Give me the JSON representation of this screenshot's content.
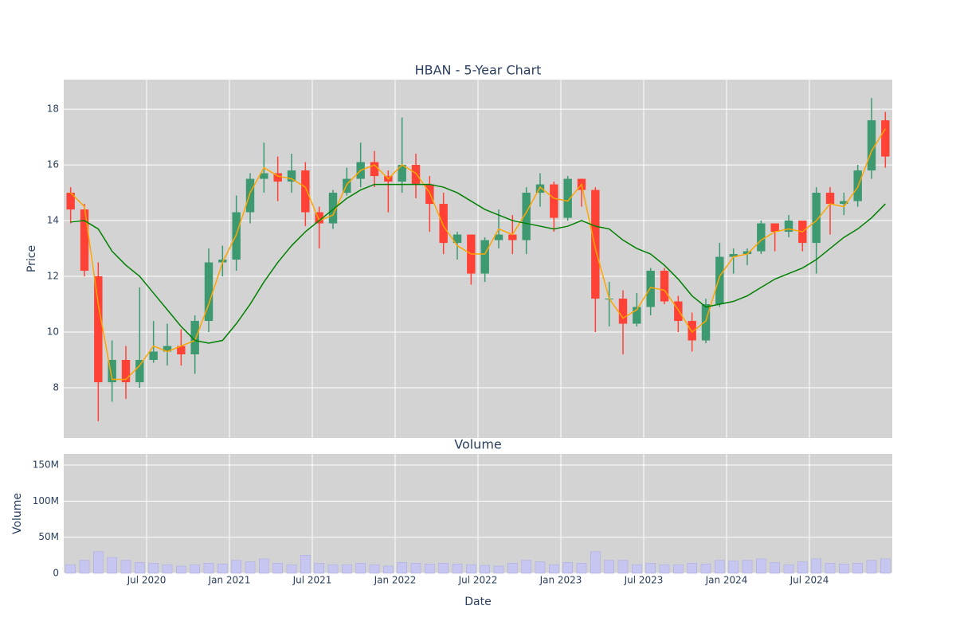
{
  "chart_data": [
    {
      "type": "candlestick",
      "title": "HBAN - 5-Year Chart",
      "ylabel": "Price",
      "x": [
        "2020-01",
        "2020-02",
        "2020-03",
        "2020-04",
        "2020-05",
        "2020-06",
        "2020-07",
        "2020-08",
        "2020-09",
        "2020-10",
        "2020-11",
        "2020-12",
        "2021-01",
        "2021-02",
        "2021-03",
        "2021-04",
        "2021-05",
        "2021-06",
        "2021-07",
        "2021-08",
        "2021-09",
        "2021-10",
        "2021-11",
        "2021-12",
        "2022-01",
        "2022-02",
        "2022-03",
        "2022-04",
        "2022-05",
        "2022-06",
        "2022-07",
        "2022-08",
        "2022-09",
        "2022-10",
        "2022-11",
        "2022-12",
        "2023-01",
        "2023-02",
        "2023-03",
        "2023-04",
        "2023-05",
        "2023-06",
        "2023-07",
        "2023-08",
        "2023-09",
        "2023-10",
        "2023-11",
        "2023-12",
        "2024-01",
        "2024-02",
        "2024-03",
        "2024-04",
        "2024-05",
        "2024-06",
        "2024-07",
        "2024-08",
        "2024-09",
        "2024-10",
        "2024-11",
        "2024-12"
      ],
      "open": [
        15.0,
        14.4,
        12.0,
        8.2,
        9.0,
        8.2,
        9.0,
        9.3,
        9.5,
        9.2,
        10.4,
        12.5,
        12.6,
        14.3,
        15.5,
        15.7,
        15.4,
        15.8,
        14.3,
        13.9,
        15.0,
        15.5,
        16.1,
        15.6,
        15.4,
        16.0,
        15.3,
        14.6,
        13.2,
        13.5,
        12.1,
        13.3,
        13.5,
        13.3,
        15.0,
        15.3,
        14.1,
        15.5,
        15.1,
        11.2,
        11.2,
        10.3,
        10.9,
        12.2,
        11.1,
        10.4,
        9.7,
        11.0,
        12.7,
        12.8,
        12.9,
        13.9,
        13.6,
        14.0,
        13.2,
        15.0,
        14.6,
        14.7,
        15.8,
        17.6
      ],
      "high": [
        15.2,
        14.6,
        12.5,
        9.7,
        9.5,
        11.6,
        10.4,
        10.3,
        10.1,
        10.6,
        13.0,
        13.1,
        14.9,
        15.7,
        16.8,
        16.3,
        16.4,
        16.1,
        14.5,
        15.1,
        15.9,
        16.8,
        16.5,
        15.8,
        17.7,
        16.4,
        15.6,
        15.0,
        13.6,
        13.5,
        13.4,
        14.4,
        14.2,
        15.2,
        15.7,
        15.4,
        15.6,
        15.5,
        15.2,
        11.8,
        11.5,
        11.4,
        12.3,
        12.3,
        11.3,
        10.7,
        11.2,
        13.2,
        13.0,
        13.0,
        14.0,
        13.9,
        14.2,
        14.0,
        15.2,
        15.2,
        15.0,
        16.0,
        18.4,
        17.9
      ],
      "low": [
        13.9,
        12.0,
        6.8,
        7.5,
        7.6,
        8.0,
        8.9,
        8.8,
        8.8,
        8.5,
        10.0,
        12.0,
        12.2,
        13.9,
        15.0,
        14.7,
        15.0,
        13.8,
        13.0,
        13.7,
        14.9,
        15.2,
        15.2,
        14.3,
        15.0,
        14.8,
        13.6,
        12.8,
        12.6,
        11.7,
        11.8,
        13.0,
        12.8,
        12.8,
        14.5,
        13.6,
        14.0,
        14.5,
        10.0,
        10.2,
        9.2,
        10.2,
        10.6,
        11.0,
        10.0,
        9.3,
        9.6,
        10.9,
        12.1,
        12.4,
        12.8,
        12.9,
        13.4,
        12.9,
        12.1,
        13.5,
        14.2,
        14.5,
        15.5,
        15.9
      ],
      "close": [
        14.4,
        12.2,
        8.2,
        9.0,
        8.2,
        9.0,
        9.3,
        9.5,
        9.2,
        10.4,
        12.5,
        12.6,
        14.3,
        15.5,
        15.7,
        15.4,
        15.8,
        14.3,
        13.9,
        15.0,
        15.5,
        16.1,
        15.6,
        15.4,
        16.0,
        15.3,
        14.6,
        13.2,
        13.5,
        12.1,
        13.3,
        13.5,
        13.3,
        15.0,
        15.3,
        14.1,
        15.5,
        15.1,
        11.2,
        11.2,
        10.3,
        10.9,
        12.2,
        11.1,
        10.4,
        9.7,
        11.0,
        12.7,
        12.8,
        12.9,
        13.9,
        13.6,
        14.0,
        13.2,
        15.0,
        14.6,
        14.7,
        15.8,
        17.6,
        16.3
      ],
      "increasing_color": "#3d9970",
      "decreasing_color": "#ff4136",
      "series": [
        {
          "color": "#ffa500",
          "values": [
            15.0,
            14.5,
            11.0,
            8.3,
            8.3,
            8.8,
            9.5,
            9.3,
            9.5,
            9.7,
            11.0,
            12.5,
            13.5,
            15.0,
            15.9,
            15.6,
            15.5,
            15.2,
            14.0,
            14.2,
            15.3,
            15.8,
            16.0,
            15.5,
            16.0,
            15.7,
            15.0,
            13.8,
            13.1,
            12.8,
            12.8,
            13.7,
            13.5,
            14.3,
            15.2,
            14.8,
            14.7,
            15.3,
            13.0,
            11.2,
            10.5,
            10.8,
            11.6,
            11.5,
            10.8,
            10.0,
            10.4,
            12.0,
            12.7,
            12.8,
            13.3,
            13.6,
            13.7,
            13.6,
            14.0,
            14.6,
            14.5,
            15.2,
            16.5,
            17.3
          ]
        },
        {
          "color": "#008000",
          "values": [
            13.95,
            14.0,
            13.7,
            12.9,
            12.4,
            12.0,
            11.4,
            10.8,
            10.2,
            9.7,
            9.6,
            9.7,
            10.3,
            11.0,
            11.8,
            12.5,
            13.1,
            13.6,
            14.0,
            14.4,
            14.8,
            15.1,
            15.3,
            15.3,
            15.3,
            15.3,
            15.3,
            15.2,
            15.0,
            14.7,
            14.4,
            14.2,
            14.0,
            13.9,
            13.8,
            13.7,
            13.8,
            14.0,
            13.8,
            13.7,
            13.3,
            13.0,
            12.8,
            12.4,
            11.9,
            11.3,
            10.9,
            11.0,
            11.1,
            11.3,
            11.6,
            11.9,
            12.1,
            12.3,
            12.6,
            13.0,
            13.4,
            13.7,
            14.1,
            14.6
          ]
        }
      ],
      "xlim": [
        "2020-01",
        "2025-01"
      ],
      "ylim": [
        6.2,
        19.06
      ],
      "yticks": [
        8,
        10,
        12,
        14,
        16,
        18
      ],
      "grid": true
    },
    {
      "type": "bar",
      "title": "Volume",
      "ylabel": "Volume",
      "xlabel": "Date",
      "x": [
        "2020-01",
        "2020-02",
        "2020-03",
        "2020-04",
        "2020-05",
        "2020-06",
        "2020-07",
        "2020-08",
        "2020-09",
        "2020-10",
        "2020-11",
        "2020-12",
        "2021-01",
        "2021-02",
        "2021-03",
        "2021-04",
        "2021-05",
        "2021-06",
        "2021-07",
        "2021-08",
        "2021-09",
        "2021-10",
        "2021-11",
        "2021-12",
        "2022-01",
        "2022-02",
        "2022-03",
        "2022-04",
        "2022-05",
        "2022-06",
        "2022-07",
        "2022-08",
        "2022-09",
        "2022-10",
        "2022-11",
        "2022-12",
        "2023-01",
        "2023-02",
        "2023-03",
        "2023-04",
        "2023-05",
        "2023-06",
        "2023-07",
        "2023-08",
        "2023-09",
        "2023-10",
        "2023-11",
        "2023-12",
        "2024-01",
        "2024-02",
        "2024-03",
        "2024-04",
        "2024-05",
        "2024-06",
        "2024-07",
        "2024-08",
        "2024-09",
        "2024-10",
        "2024-11",
        "2024-12"
      ],
      "values": [
        12000000,
        18000000,
        30000000,
        22000000,
        18000000,
        15000000,
        14000000,
        12000000,
        10000000,
        12000000,
        14000000,
        13000000,
        18000000,
        16000000,
        20000000,
        14000000,
        12000000,
        25000000,
        14000000,
        12000000,
        12000000,
        14000000,
        12000000,
        10000000,
        15000000,
        14000000,
        13000000,
        14000000,
        13000000,
        12000000,
        11000000,
        10000000,
        14000000,
        18000000,
        16000000,
        12000000,
        15000000,
        14000000,
        30000000,
        18000000,
        18000000,
        12000000,
        14000000,
        12000000,
        12000000,
        14000000,
        13000000,
        18000000,
        17000000,
        18000000,
        20000000,
        15000000,
        12000000,
        16000000,
        20000000,
        14000000,
        13000000,
        14000000,
        18000000,
        20000000
      ],
      "color": "#c6c6f0",
      "xlim": [
        "2020-01",
        "2025-01"
      ],
      "xticks": [
        {
          "value": "2020-07",
          "label": "Jul 2020"
        },
        {
          "value": "2021-01",
          "label": "Jan 2021"
        },
        {
          "value": "2021-07",
          "label": "Jul 2021"
        },
        {
          "value": "2022-01",
          "label": "Jan 2022"
        },
        {
          "value": "2022-07",
          "label": "Jul 2022"
        },
        {
          "value": "2023-01",
          "label": "Jan 2023"
        },
        {
          "value": "2023-07",
          "label": "Jul 2023"
        },
        {
          "value": "2024-01",
          "label": "Jan 2024"
        },
        {
          "value": "2024-07",
          "label": "Jul 2024"
        }
      ],
      "ylim": [
        0,
        165500000
      ],
      "yticks": [
        0,
        {
          "value": 50000000,
          "label": "50M"
        },
        {
          "value": 100000000,
          "label": "100M"
        },
        {
          "value": 150000000,
          "label": "150M"
        }
      ],
      "grid": true
    }
  ]
}
